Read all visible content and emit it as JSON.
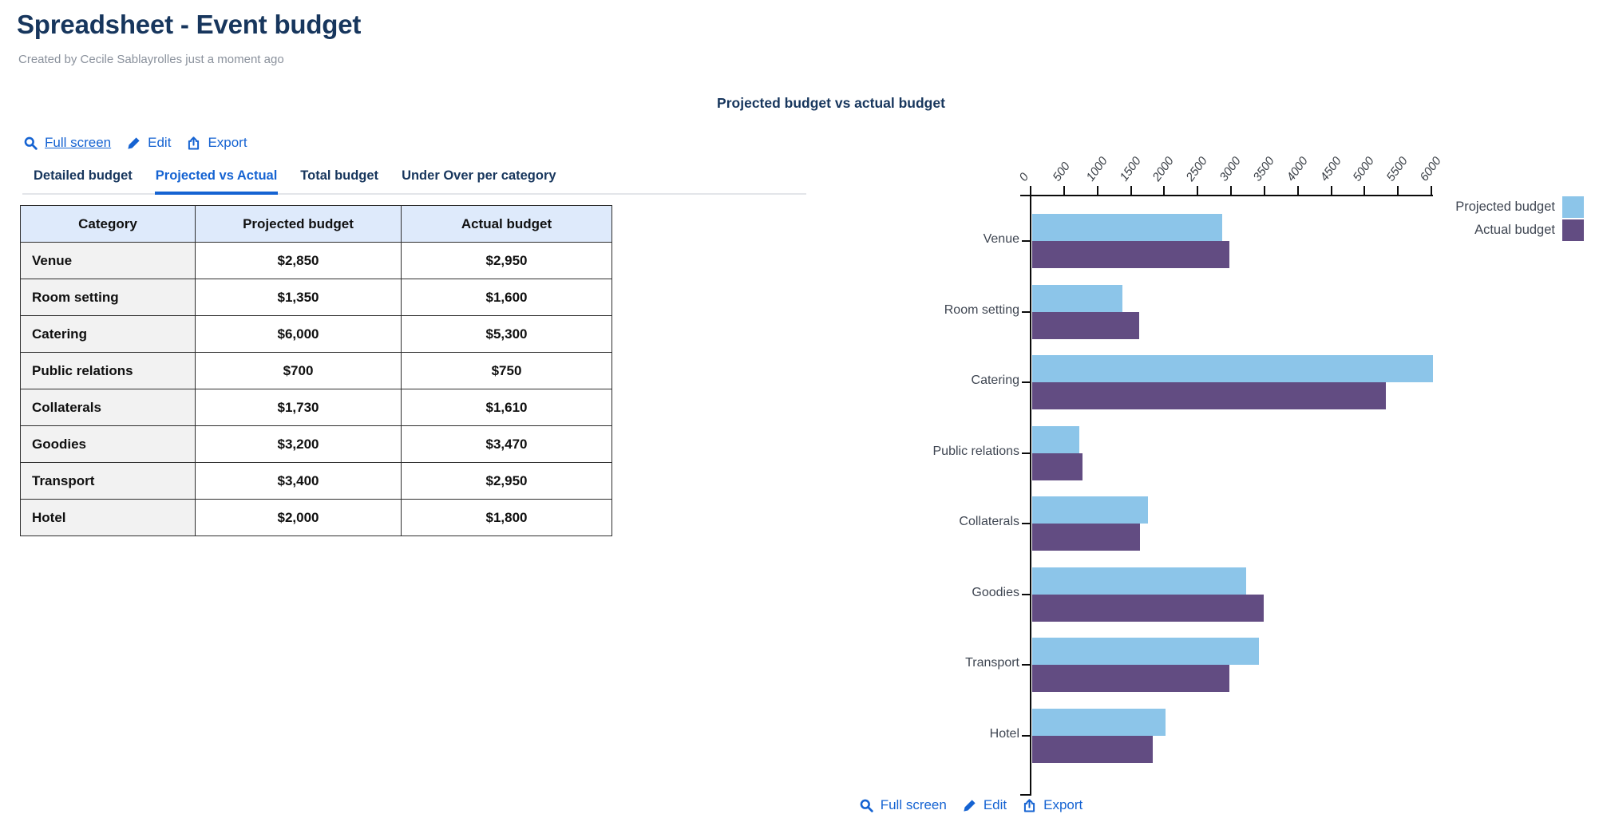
{
  "header": {
    "title": "Spreadsheet - Event budget",
    "subtitle": "Created by Cecile Sablayrolles just a moment ago"
  },
  "toolbar_top": {
    "full_screen": "Full screen",
    "edit": "Edit",
    "export": "Export"
  },
  "toolbar_bottom": {
    "full_screen": "Full screen",
    "edit": "Edit",
    "export": "Export"
  },
  "tabs": [
    {
      "label": "Detailed budget",
      "active": false
    },
    {
      "label": "Projected vs Actual",
      "active": true
    },
    {
      "label": "Total budget",
      "active": false
    },
    {
      "label": "Under Over per category",
      "active": false
    }
  ],
  "table": {
    "columns": [
      "Category",
      "Projected budget",
      "Actual budget"
    ],
    "rows": [
      {
        "category": "Venue",
        "projected": "$2,850",
        "actual": "$2,950"
      },
      {
        "category": "Room setting",
        "projected": "$1,350",
        "actual": "$1,600"
      },
      {
        "category": "Catering",
        "projected": "$6,000",
        "actual": "$5,300"
      },
      {
        "category": "Public relations",
        "projected": "$700",
        "actual": "$750"
      },
      {
        "category": "Collaterals",
        "projected": "$1,730",
        "actual": "$1,610"
      },
      {
        "category": "Goodies",
        "projected": "$3,200",
        "actual": "$3,470"
      },
      {
        "category": "Transport",
        "projected": "$3,400",
        "actual": "$2,950"
      },
      {
        "category": "Hotel",
        "projected": "$2,000",
        "actual": "$1,800"
      }
    ]
  },
  "chart_data": {
    "type": "bar",
    "orientation": "horizontal",
    "title": "Projected budget vs actual budget",
    "categories": [
      "Venue",
      "Room setting",
      "Catering",
      "Public relations",
      "Collaterals",
      "Goodies",
      "Transport",
      "Hotel"
    ],
    "series": [
      {
        "name": "Projected budget",
        "color": "#8CC5E9",
        "values": [
          2850,
          1350,
          6000,
          700,
          1730,
          3200,
          3400,
          2000
        ]
      },
      {
        "name": "Actual budget",
        "color": "#624C82",
        "values": [
          2950,
          1600,
          5300,
          750,
          1610,
          3470,
          2950,
          1800
        ]
      }
    ],
    "xlim": [
      0,
      6000
    ],
    "xticks": [
      0,
      500,
      1000,
      1500,
      2000,
      2500,
      3000,
      3500,
      4000,
      4500,
      5000,
      5500,
      6000
    ],
    "axis_position": "top",
    "legend_position": "top-right",
    "grid": false
  },
  "colors": {
    "link": "#1563D2",
    "heading": "#17365D",
    "tab_active": "#1563D2",
    "table_header_bg": "#DEEAFB",
    "row_label_bg": "#F2F2F2",
    "bar_projected": "#8CC5E9",
    "bar_actual": "#624C82"
  }
}
